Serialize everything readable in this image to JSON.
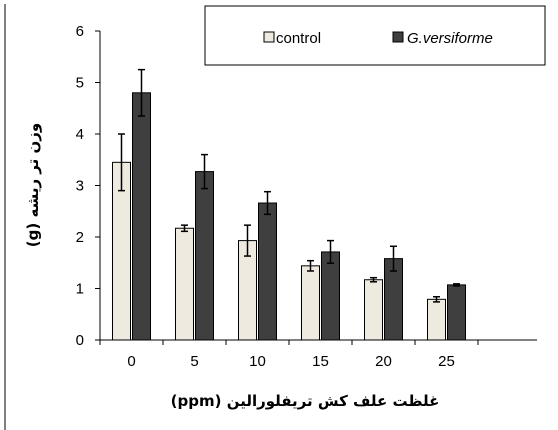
{
  "chart_data": {
    "type": "bar",
    "categories": [
      "0",
      "5",
      "10",
      "15",
      "20",
      "25"
    ],
    "series": [
      {
        "name": "control",
        "color": "#eeeae0",
        "values": [
          3.45,
          2.17,
          1.93,
          1.44,
          1.17,
          0.79
        ],
        "errors": [
          0.55,
          0.06,
          0.3,
          0.1,
          0.04,
          0.05
        ]
      },
      {
        "name": "G.versiforme",
        "color": "#3f3f3f",
        "values": [
          4.8,
          3.27,
          2.66,
          1.71,
          1.58,
          1.07
        ],
        "errors": [
          0.45,
          0.33,
          0.22,
          0.22,
          0.24,
          0.02
        ]
      }
    ],
    "xlabel": "غلظت علف کش تریفلورالین (ppm)",
    "ylabel": "وزن تر ریشه (g)",
    "ylim": [
      0,
      6
    ],
    "yticks": [
      "0",
      "1",
      "2",
      "3",
      "4",
      "5",
      "6"
    ],
    "legend": "top-right",
    "grid": false
  }
}
